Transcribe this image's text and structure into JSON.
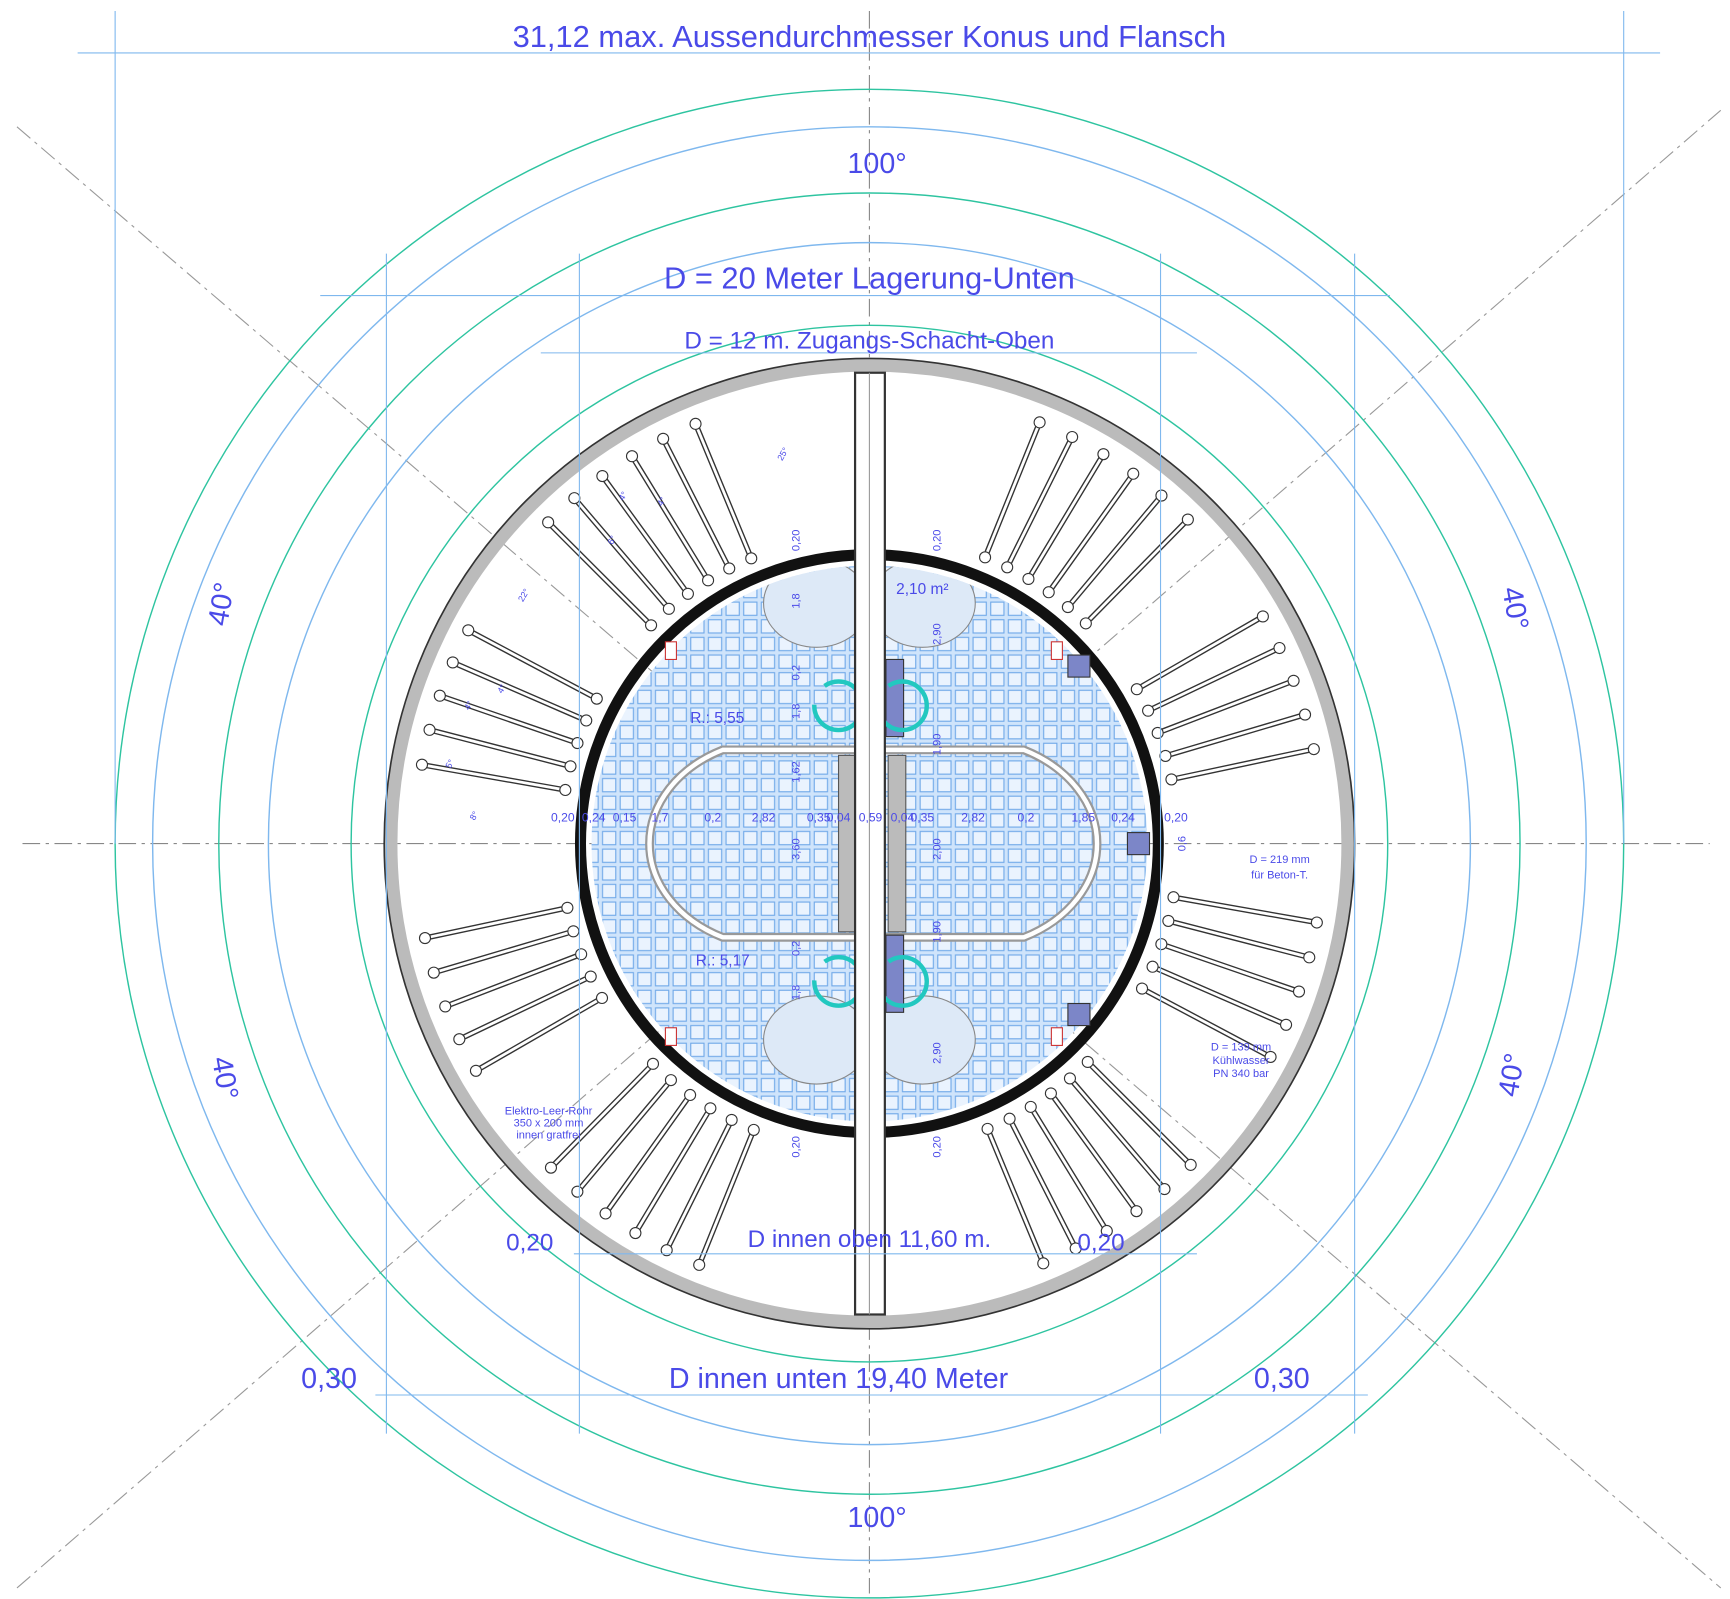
{
  "header": {
    "title": "31,12 max. Aussendurchmesser Konus und Flansch"
  },
  "labels": {
    "angle_top": "100°",
    "angle_bottom": "100°",
    "d20": "D = 20 Meter Lagerung-Unten",
    "d12": "D = 12 m. Zugangs-Schacht-Oben",
    "angle_left_top": "40°",
    "angle_left_bottom": "40°",
    "angle_right_top": "40°",
    "angle_right_bottom": "40°",
    "d_inner_top": "D innen oben 11,60 m.",
    "wall_left_top": "0,20",
    "wall_right_top": "0,20",
    "d_inner_bottom": "D innen unten 19,40 Meter",
    "wall_left_bottom": "0,30",
    "wall_right_bottom": "0,30",
    "radius_1": "R.: 5,55",
    "radius_2": "R.: 5,17",
    "area": "2,10 m²"
  },
  "row_dimensions": [
    "0,20",
    "0,24",
    "0,15",
    "1,7",
    "0,2",
    "2,82",
    "0,35",
    "0,04",
    "0,59",
    "0,04",
    "0,35",
    "2,82",
    "0,2",
    "1,85",
    "0,24",
    "0,20"
  ],
  "vertical_dimensions_left": [
    "0,20",
    "1,8",
    "0,2",
    "1,8",
    "1,62",
    "3,60",
    "0,2",
    "1,8",
    "0,20"
  ],
  "vertical_dimensions_right": [
    "0,20",
    "2,90",
    "1,90",
    "2,00",
    "1,90",
    "2,90",
    "0,20"
  ],
  "side_dimension": "0,6",
  "small_angles": [
    "25°",
    "22°",
    "6°",
    "4°",
    "4°",
    "4°",
    "4°",
    "5°",
    "8°"
  ],
  "notes": {
    "pipe_concrete": [
      "D = 219 mm",
      "für Beton-T."
    ],
    "pipe_cooling": [
      "D = 139 mm",
      "Kühlwasser",
      "PN 340 bar"
    ],
    "conduit": [
      "Elektro-Leer-Rohr",
      "350 x 200 mm",
      "innen gratfrei"
    ]
  }
}
